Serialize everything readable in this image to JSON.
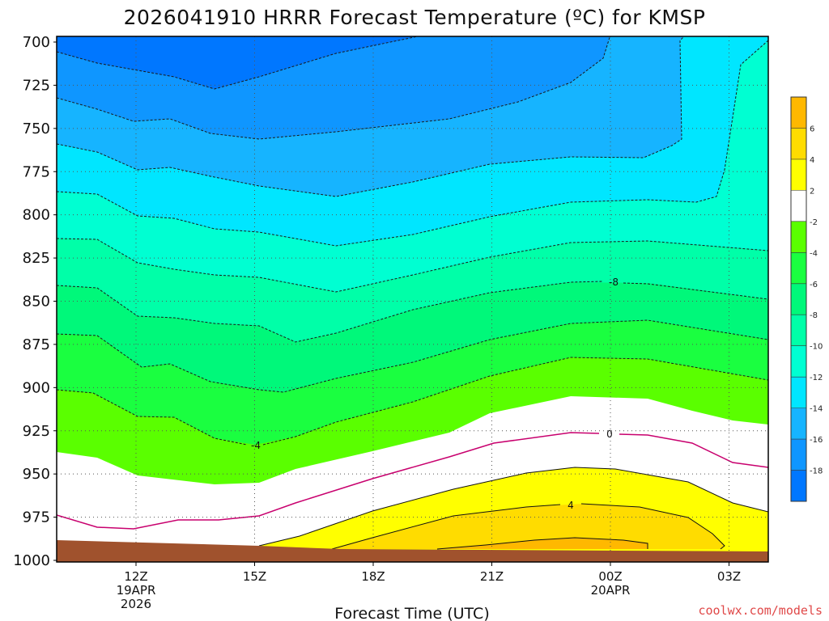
{
  "chart_data": {
    "type": "heatmap",
    "title": "2026041910 HRRR Forecast Temperature (ºC) for KMSP",
    "xlabel": "Forecast Time (UTC)",
    "ylabel": "",
    "y_ticks": [
      "700",
      "725",
      "750",
      "775",
      "800",
      "825",
      "850",
      "875",
      "900",
      "925",
      "950",
      "975",
      "1000"
    ],
    "x_ticks": [
      {
        "label": "12Z",
        "sub1": "19APR",
        "sub2": "2026"
      },
      {
        "label": "15Z",
        "sub1": "",
        "sub2": ""
      },
      {
        "label": "18Z",
        "sub1": "",
        "sub2": ""
      },
      {
        "label": "21Z",
        "sub1": "",
        "sub2": ""
      },
      {
        "label": "00Z",
        "sub1": "20APR",
        "sub2": ""
      },
      {
        "label": "03Z",
        "sub1": "",
        "sub2": ""
      }
    ],
    "colorbar": {
      "bins": [
        {
          "lo": -20,
          "hi": -18,
          "color": "#0077ff"
        },
        {
          "lo": -18,
          "hi": -16,
          "color": "#0f96ff"
        },
        {
          "lo": -16,
          "hi": -14,
          "color": "#16b4ff"
        },
        {
          "lo": -14,
          "hi": -12,
          "color": "#00e6ff"
        },
        {
          "lo": -12,
          "hi": -10,
          "color": "#00ffd2"
        },
        {
          "lo": -10,
          "hi": -8,
          "color": "#00ffa8"
        },
        {
          "lo": -8,
          "hi": -6,
          "color": "#00f87a"
        },
        {
          "lo": -6,
          "hi": -4,
          "color": "#1aff40"
        },
        {
          "lo": -4,
          "hi": -2,
          "color": "#5aff00"
        },
        {
          "lo": -2,
          "hi": 2,
          "color": "#ffffff"
        },
        {
          "lo": 2,
          "hi": 4,
          "color": "#ffff00"
        },
        {
          "lo": 4,
          "hi": 6,
          "color": "#ffdc00"
        },
        {
          "lo": 6,
          "hi": 8,
          "color": "#ffb800"
        }
      ],
      "labels": [
        "6",
        "4",
        "2",
        "-2",
        "-4",
        "-6",
        "-8",
        "-10",
        "-12",
        "-14",
        "-16",
        "-18"
      ]
    },
    "contour_labels": [
      "-8",
      "-4",
      "0",
      "4"
    ],
    "ground_color": "#a0522d"
  },
  "credit": "coolwx.com/models"
}
